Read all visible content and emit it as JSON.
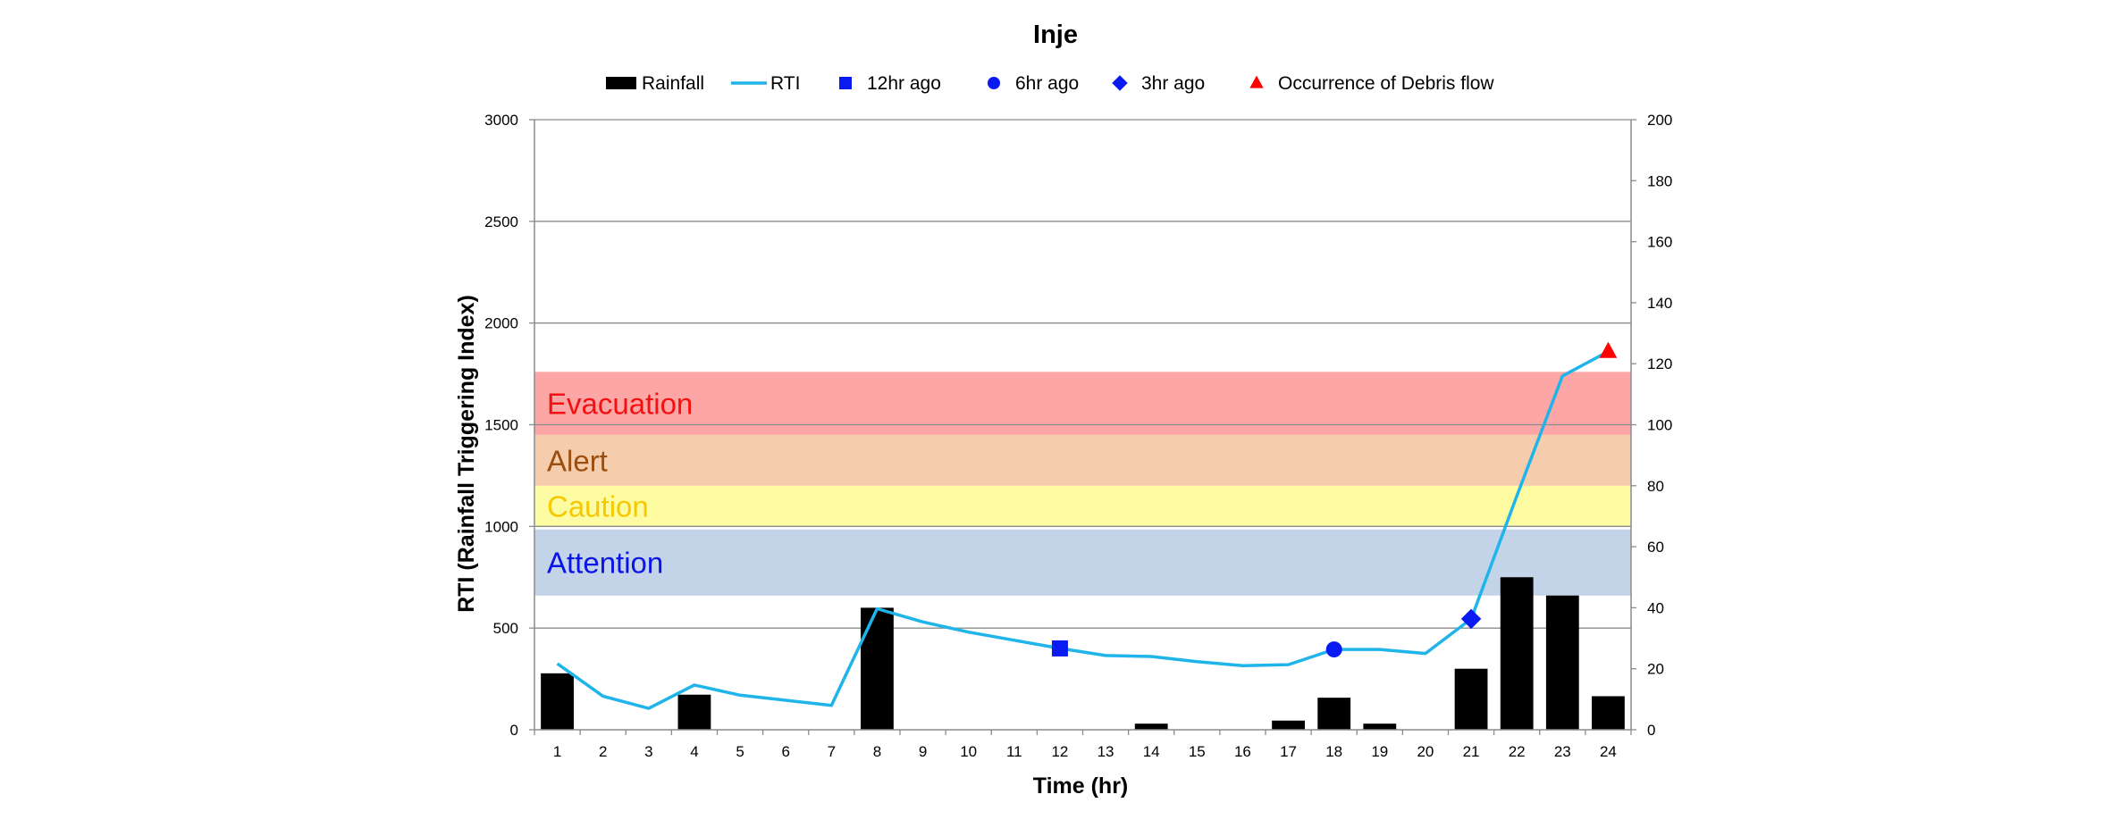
{
  "chart_data": {
    "type": "bar",
    "title": "Inje",
    "xlabel": "Time (hr)",
    "ylabel": "RTI (Rainfall Triggering Index)",
    "categories": [
      "1",
      "2",
      "3",
      "4",
      "5",
      "6",
      "7",
      "8",
      "9",
      "10",
      "11",
      "12",
      "13",
      "14",
      "15",
      "16",
      "17",
      "18",
      "19",
      "20",
      "21",
      "22",
      "23",
      "24"
    ],
    "left_axis": {
      "min": 0,
      "max": 3000,
      "ticks": [
        "0",
        "500",
        "1000",
        "1500",
        "2000",
        "2500",
        "3000"
      ]
    },
    "right_axis": {
      "min": 0,
      "max": 200,
      "ticks": [
        "0",
        "20",
        "40",
        "60",
        "80",
        "100",
        "120",
        "140",
        "160",
        "180",
        "200"
      ]
    },
    "grid": true,
    "legend_position": "top",
    "legend": [
      {
        "label": "Rainfall",
        "symbol": "bar",
        "color": "#000000"
      },
      {
        "label": "RTI",
        "symbol": "line",
        "color": "#1fb4ea"
      },
      {
        "label": "12hr ago",
        "symbol": "square",
        "color": "#0a1bf2"
      },
      {
        "label": "6hr ago",
        "symbol": "circle",
        "color": "#0a1bf2"
      },
      {
        "label": "3hr ago",
        "symbol": "diamond",
        "color": "#0a1bf2"
      },
      {
        "label": "Occurrence of Debris flow",
        "symbol": "triangle",
        "color": "#ff0000"
      }
    ],
    "zones": [
      {
        "label": "Attention",
        "from": 660,
        "to": 985,
        "fill": "#c3d3e8",
        "text_color": "#0a14e6"
      },
      {
        "label": "Caution",
        "from": 1000,
        "to": 1200,
        "fill": "#fefca3",
        "text_color": "#f5c800"
      },
      {
        "label": "Alert",
        "from": 1200,
        "to": 1450,
        "fill": "#f5cdac",
        "text_color": "#9a4e10"
      },
      {
        "label": "Evacuation",
        "from": 1450,
        "to": 1760,
        "fill": "#fca7a6",
        "text_color": "#f21010"
      }
    ],
    "series": [
      {
        "name": "Rainfall",
        "type": "bar",
        "axis": "right",
        "color": "#000000",
        "values": [
          18.5,
          0,
          0,
          11.5,
          0,
          0,
          0,
          40,
          0,
          0,
          0,
          0,
          0,
          2,
          0,
          0,
          3,
          10.5,
          2,
          0,
          20,
          50,
          44,
          11
        ]
      },
      {
        "name": "RTI",
        "type": "line",
        "axis": "left",
        "color": "#1fb4ea",
        "values": [
          325,
          165,
          105,
          220,
          170,
          145,
          120,
          595,
          530,
          480,
          440,
          400,
          365,
          360,
          335,
          315,
          320,
          395,
          395,
          375,
          545,
          1150,
          1740,
          1860
        ]
      }
    ],
    "markers": [
      {
        "name": "12hr ago",
        "shape": "square",
        "x": "12",
        "y": 400,
        "color": "#0a1bf2"
      },
      {
        "name": "6hr ago",
        "shape": "circle",
        "x": "18",
        "y": 395,
        "color": "#0a1bf2"
      },
      {
        "name": "3hr ago",
        "shape": "diamond",
        "x": "21",
        "y": 545,
        "color": "#0a1bf2"
      },
      {
        "name": "Occurrence of Debris flow",
        "shape": "triangle",
        "x": "24",
        "y": 1860,
        "color": "#ff0000"
      }
    ]
  }
}
